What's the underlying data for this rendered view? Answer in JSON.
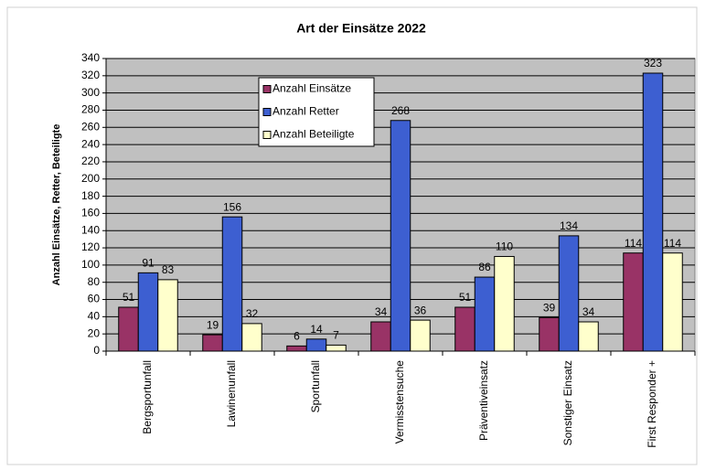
{
  "chart_data": {
    "type": "bar",
    "title": "Art der Einsätze 2022",
    "y_label": "Anzahl Einsätze, Retter, Beteiligte",
    "categories": [
      "Bergsportunfall",
      "Lawinenunfall",
      "Sportunfall",
      "Vermisstensuche",
      "Präventiveinsatz",
      "Sonstiger Einsatz",
      "First Responder +"
    ],
    "series": [
      {
        "name": "Anzahl Einsätze",
        "color": "#993366",
        "values": [
          51,
          19,
          6,
          34,
          51,
          39,
          114
        ]
      },
      {
        "name": "Anzahl Retter",
        "color": "#3d5fd1",
        "values": [
          91,
          156,
          14,
          268,
          86,
          134,
          323
        ]
      },
      {
        "name": "Anzahl Beteiligte",
        "color": "#ffffcc",
        "values": [
          83,
          32,
          7,
          36,
          110,
          34,
          114
        ]
      }
    ],
    "ylim": [
      0,
      340
    ],
    "yticks": [
      0,
      20,
      40,
      60,
      80,
      100,
      120,
      140,
      160,
      180,
      200,
      220,
      240,
      260,
      280,
      300,
      320,
      340
    ],
    "grid": true,
    "legend": "top-left"
  }
}
